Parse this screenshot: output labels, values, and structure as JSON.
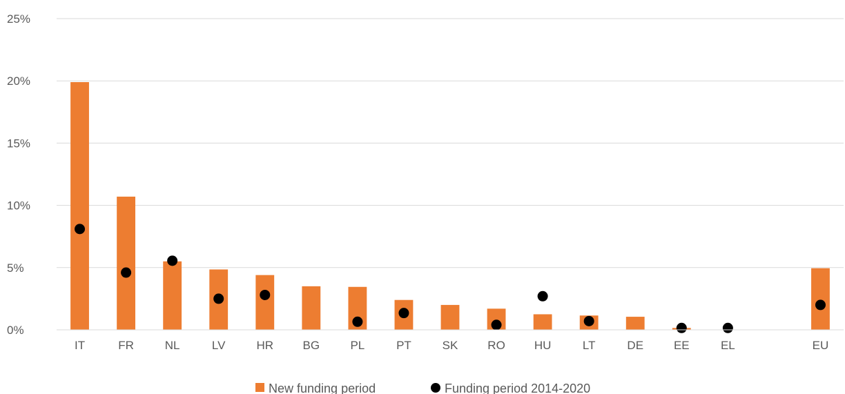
{
  "chart_data": {
    "type": "bar",
    "categories": [
      "IT",
      "FR",
      "NL",
      "LV",
      "HR",
      "BG",
      "PL",
      "PT",
      "SK",
      "RO",
      "HU",
      "LT",
      "DE",
      "EE",
      "EL",
      "",
      "EU"
    ],
    "series": [
      {
        "name": "New funding period",
        "type": "bar",
        "color": "#ED7D31",
        "values": [
          19.9,
          10.7,
          5.5,
          4.85,
          4.4,
          3.5,
          3.45,
          2.4,
          2.0,
          1.7,
          1.25,
          1.15,
          1.05,
          0.15,
          null,
          null,
          4.95
        ]
      },
      {
        "name": "Funding period 2014-2020",
        "type": "scatter",
        "color": "#000000",
        "values": [
          8.1,
          4.6,
          5.55,
          2.5,
          2.8,
          null,
          0.65,
          1.35,
          null,
          0.4,
          2.7,
          0.7,
          null,
          0.15,
          0.15,
          null,
          2.0
        ]
      }
    ],
    "y_ticks": [
      "0%",
      "5%",
      "10%",
      "15%",
      "20%",
      "25%"
    ],
    "ylim": [
      0,
      25
    ],
    "y_unit": "%",
    "grid": "horizontal",
    "legend_position": "bottom"
  }
}
